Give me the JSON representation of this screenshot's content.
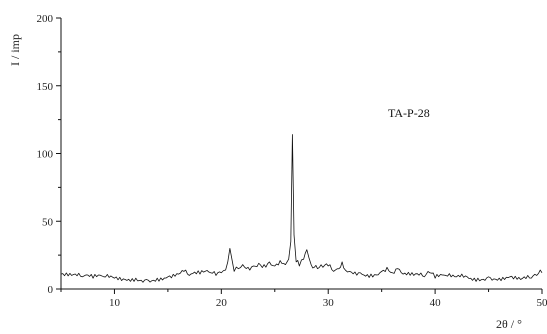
{
  "chart_data": {
    "type": "line",
    "title": "",
    "xlabel": "2θ / °",
    "ylabel": "I / imp",
    "xlim": [
      5,
      50
    ],
    "ylim": [
      0,
      200
    ],
    "xticks": [
      10,
      20,
      30,
      40,
      50
    ],
    "yticks": [
      0,
      50,
      100,
      150,
      200
    ],
    "grid": false,
    "annotation": "TA-P-28",
    "series": [
      {
        "x": [
          5,
          6,
          7,
          8,
          9,
          10,
          11,
          12,
          13,
          14,
          15,
          16,
          16.5,
          17,
          18,
          19,
          19.5,
          20,
          20.4,
          20.8,
          21.2,
          21.6,
          22,
          22.5,
          23,
          23.5,
          24,
          24.5,
          25,
          25.5,
          26,
          26.3,
          26.5,
          26.65,
          26.8,
          27,
          27.3,
          27.7,
          28,
          28.4,
          29,
          29.5,
          30,
          30.5,
          31,
          31.3,
          31.6,
          32,
          33,
          34,
          35,
          35.5,
          36,
          36.5,
          37,
          38,
          39,
          39.5,
          40,
          41,
          42,
          42.5,
          43,
          44,
          45,
          46,
          47,
          48,
          49,
          49.5,
          50
        ],
        "y": [
          11,
          10,
          9,
          8,
          9,
          8,
          7,
          8,
          7,
          8,
          9,
          11,
          13,
          10,
          11,
          12,
          10,
          12,
          14,
          30,
          13,
          15,
          18,
          16,
          17,
          19,
          18,
          20,
          17,
          21,
          18,
          22,
          35,
          114,
          40,
          20,
          17,
          22,
          29,
          18,
          15,
          16,
          17,
          13,
          15,
          20,
          14,
          13,
          12,
          11,
          13,
          16,
          12,
          15,
          11,
          10,
          9,
          12,
          8,
          10,
          9,
          11,
          9,
          8,
          9,
          8,
          9,
          7,
          8,
          10,
          12
        ]
      }
    ]
  }
}
